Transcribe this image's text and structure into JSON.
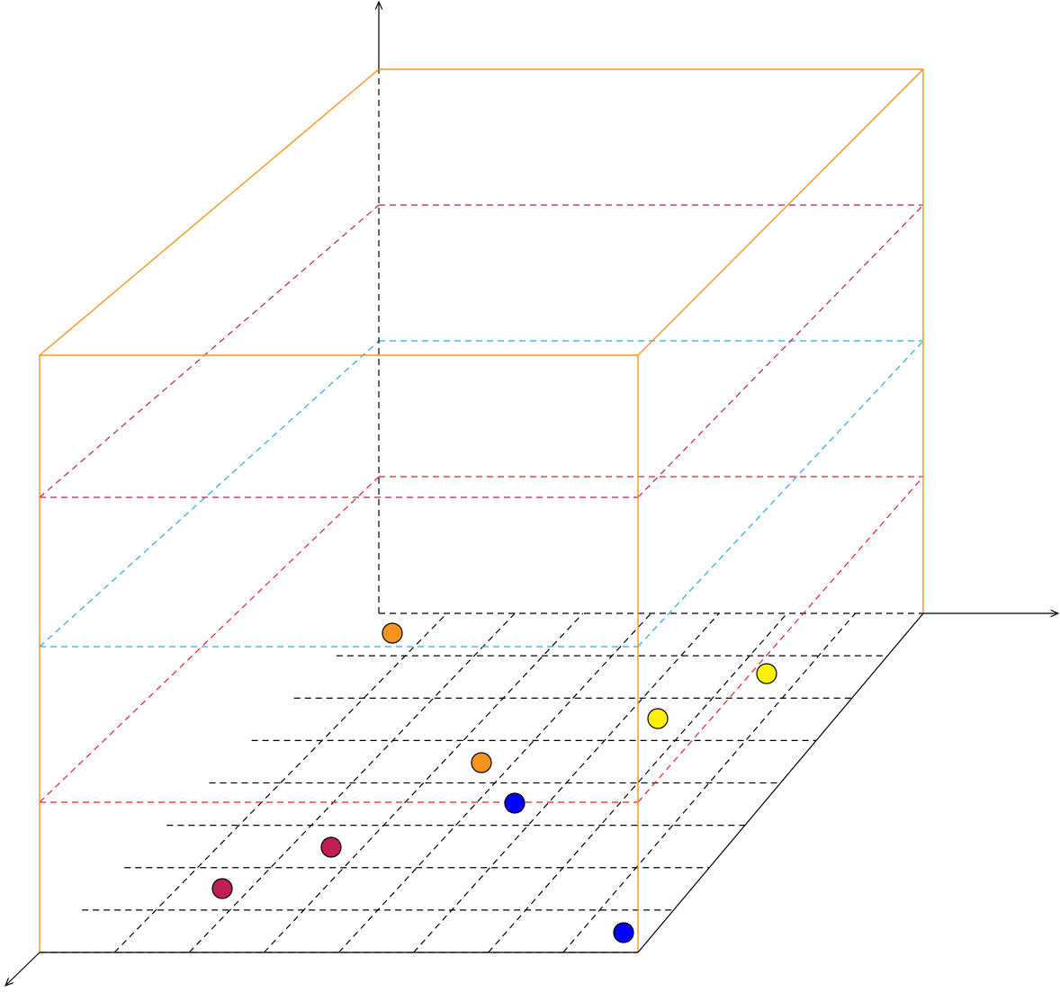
{
  "colors": {
    "axis": "#000000",
    "box": "#f7941d",
    "floor_grid": "#000000",
    "plane_low": "#ee1c25",
    "plane_mid": "#27aae1",
    "plane_high": "#be1e51"
  },
  "planes": [
    {
      "name": "plane-low",
      "color_key": "plane_low"
    },
    {
      "name": "plane-mid",
      "color_key": "plane_mid"
    },
    {
      "name": "plane-high",
      "color_key": "plane_high"
    }
  ],
  "points": [
    {
      "color": "#f7941d"
    },
    {
      "color": "#f7941d"
    },
    {
      "color": "#fff200"
    },
    {
      "color": "#fff200"
    },
    {
      "color": "#0000ff"
    },
    {
      "color": "#0000ff"
    },
    {
      "color": "#be1e51"
    },
    {
      "color": "#be1e51"
    }
  ]
}
